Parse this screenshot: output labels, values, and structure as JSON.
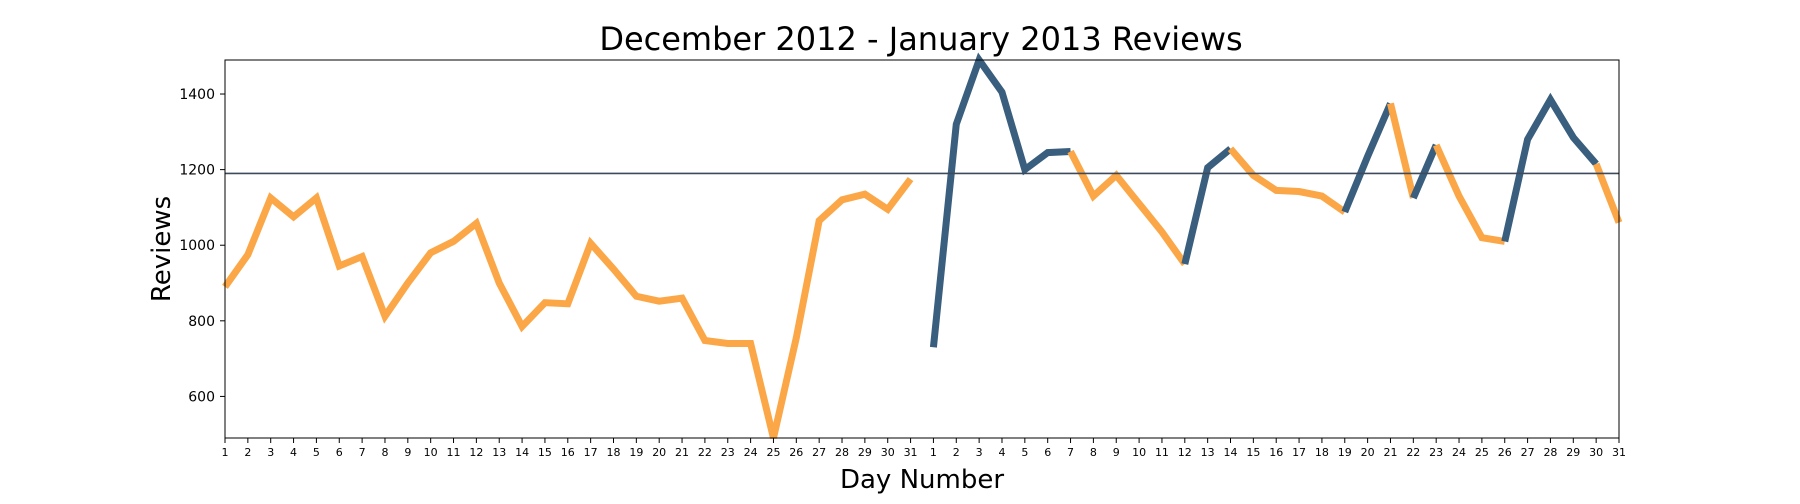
{
  "chart_data": {
    "type": "line",
    "title": "December 2012 - January 2013 Reviews",
    "xlabel": "Day Number",
    "ylabel": "Reviews",
    "ylim": [
      490,
      1490
    ],
    "yticks": [
      600,
      800,
      1000,
      1200,
      1400
    ],
    "x_tick_labels": [
      "1",
      "2",
      "3",
      "4",
      "5",
      "6",
      "7",
      "8",
      "9",
      "10",
      "11",
      "12",
      "13",
      "14",
      "15",
      "16",
      "17",
      "18",
      "19",
      "20",
      "21",
      "22",
      "23",
      "24",
      "25",
      "26",
      "27",
      "28",
      "29",
      "30",
      "31",
      "1",
      "2",
      "3",
      "4",
      "5",
      "6",
      "7",
      "8",
      "9",
      "10",
      "11",
      "12",
      "13",
      "14",
      "15",
      "16",
      "17",
      "18",
      "19",
      "20",
      "21",
      "22",
      "23",
      "24",
      "25",
      "26",
      "27",
      "28",
      "29",
      "30",
      "31"
    ],
    "reference_line": 1190,
    "grid": false,
    "colors": {
      "below": "#FBA747",
      "above": "#3A5E7D",
      "reference": "#3C4A5C"
    },
    "segments": [
      {
        "color": "below",
        "start": 0,
        "values": [
          890,
          975,
          1125,
          1075,
          1125,
          945,
          970,
          812,
          900,
          980,
          1010,
          1058,
          900,
          785,
          848,
          845,
          1005,
          937,
          865,
          852,
          860,
          748,
          740,
          740,
          490,
          755,
          1065,
          1120,
          1135,
          1095,
          1175
        ]
      },
      {
        "color": "above",
        "start": 31,
        "values": [
          730,
          1320,
          1490,
          1405,
          1200,
          1245,
          1248
        ]
      },
      {
        "color": "below",
        "start": 37,
        "values": [
          1248,
          1130,
          1185,
          1110,
          1035,
          950
        ]
      },
      {
        "color": "above",
        "start": 42,
        "values": [
          950,
          1205,
          1255
        ]
      },
      {
        "color": "below",
        "start": 44,
        "values": [
          1255,
          1185,
          1145,
          1142,
          1130,
          1088
        ]
      },
      {
        "color": "above",
        "start": 49,
        "values": [
          1088,
          1235,
          1375
        ]
      },
      {
        "color": "below",
        "start": 51,
        "values": [
          1375,
          1125
        ]
      },
      {
        "color": "above",
        "start": 52,
        "values": [
          1125,
          1265
        ]
      },
      {
        "color": "below",
        "start": 53,
        "values": [
          1265,
          1130,
          1020,
          1010
        ]
      },
      {
        "color": "above",
        "start": 56,
        "values": [
          1010,
          1280,
          1385,
          1285,
          1215
        ]
      },
      {
        "color": "below",
        "start": 60,
        "values": [
          1215,
          1060
        ]
      }
    ]
  }
}
